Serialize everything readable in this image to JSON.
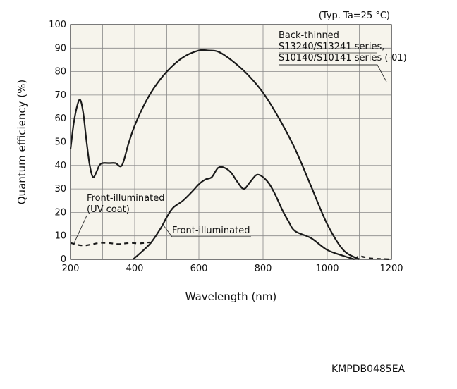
{
  "chart_data": {
    "type": "line",
    "condition": "(Typ. Ta=25 °C)",
    "xlabel": "Wavelength (nm)",
    "ylabel": "Quantum efficiency (%)",
    "xlim": [
      200,
      1200
    ],
    "ylim": [
      0,
      100
    ],
    "xticks": [
      200,
      400,
      600,
      800,
      1000,
      1200
    ],
    "yticks": [
      0,
      10,
      20,
      30,
      40,
      50,
      60,
      70,
      80,
      90,
      100
    ],
    "grid": true,
    "code": "KMPDB0485EA",
    "series": [
      {
        "name": "Back-thinned S13240/S13241 series, S10140/S10141 series (-01)",
        "style": "solid",
        "x": [
          200,
          210,
          220,
          230,
          240,
          250,
          260,
          270,
          280,
          290,
          300,
          320,
          340,
          360,
          380,
          400,
          430,
          460,
          500,
          550,
          600,
          630,
          660,
          700,
          750,
          800,
          850,
          900,
          950,
          1000,
          1050,
          1100
        ],
        "y": [
          47,
          58,
          65,
          68,
          62,
          50,
          40,
          35,
          37,
          40,
          41,
          41,
          41,
          40,
          49,
          57,
          66,
          73,
          80,
          86,
          89,
          89,
          88.5,
          85,
          79,
          71,
          60,
          47,
          31,
          15,
          4,
          0
        ]
      },
      {
        "name": "Front-illuminated",
        "style": "solid",
        "x": [
          395,
          420,
          450,
          480,
          500,
          520,
          550,
          580,
          600,
          620,
          640,
          660,
          680,
          700,
          720,
          740,
          760,
          780,
          800,
          820,
          840,
          860,
          880,
          900,
          950,
          1000,
          1050,
          1085
        ],
        "y": [
          0,
          3,
          7,
          13,
          18,
          22,
          25,
          29,
          32,
          34,
          35,
          39,
          39,
          37,
          33,
          30,
          33,
          36,
          35,
          32,
          27,
          21,
          16,
          12,
          9,
          4,
          1.5,
          0
        ]
      },
      {
        "name": "Front-illuminated (UV coat)",
        "style": "dashed",
        "x": [
          200,
          215,
          230,
          250,
          270,
          290,
          310,
          330,
          350,
          370,
          390,
          410,
          430,
          445,
          460
        ],
        "y": [
          7,
          6.5,
          6,
          6,
          6.5,
          7,
          7,
          6.8,
          6.5,
          6.8,
          7,
          6.8,
          7,
          7.2,
          7
        ],
        "tail_x": [
          1085,
          1100,
          1130,
          1160,
          1200
        ],
        "tail_y": [
          0,
          1.3,
          0.5,
          0.2,
          0
        ]
      }
    ],
    "annotations": [
      {
        "lines": [
          "Back-thinned",
          "S13240/S13241 series,",
          "S10140/S10141 series (-01)"
        ]
      },
      {
        "lines": [
          "Front-illuminated",
          "(UV coat)"
        ]
      },
      {
        "lines": [
          "Front-illuminated"
        ]
      }
    ]
  }
}
